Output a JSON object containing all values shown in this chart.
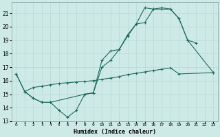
{
  "xlabel": "Humidex (Indice chaleur)",
  "xlim": [
    -0.5,
    23.5
  ],
  "ylim": [
    13,
    21.8
  ],
  "yticks": [
    13,
    14,
    15,
    16,
    17,
    18,
    19,
    20,
    21
  ],
  "xticks": [
    0,
    1,
    2,
    3,
    4,
    5,
    6,
    7,
    8,
    9,
    10,
    11,
    12,
    13,
    14,
    15,
    16,
    17,
    18,
    19,
    20,
    21,
    22,
    23
  ],
  "bg_color": "#ceeae6",
  "grid_color": "#b8d8d4",
  "line_color": "#1a6b60",
  "line1_x": [
    0,
    1,
    2,
    3,
    4,
    5,
    6,
    7,
    8,
    9,
    10,
    11,
    12,
    13,
    14,
    15,
    16,
    17,
    18,
    19,
    20,
    21
  ],
  "line1_y": [
    16.5,
    15.2,
    14.7,
    14.4,
    14.4,
    13.8,
    13.3,
    13.8,
    15.0,
    15.1,
    17.0,
    17.5,
    18.3,
    19.3,
    20.2,
    20.3,
    21.3,
    21.3,
    21.3,
    20.6,
    19.0,
    18.8
  ],
  "line2_x": [
    0,
    1,
    2,
    3,
    4,
    8,
    9,
    10,
    11,
    12,
    13,
    14,
    15,
    16,
    17,
    18,
    19,
    20,
    23
  ],
  "line2_y": [
    16.5,
    15.2,
    14.7,
    14.4,
    14.4,
    15.0,
    15.1,
    17.5,
    18.2,
    18.3,
    19.4,
    20.2,
    21.4,
    21.3,
    21.4,
    21.3,
    20.6,
    19.0,
    16.6
  ],
  "line3_x": [
    1,
    2,
    3,
    4,
    5,
    6,
    7,
    8,
    9,
    10,
    11,
    12,
    13,
    14,
    15,
    16,
    17,
    18,
    19,
    23
  ],
  "line3_y": [
    15.2,
    15.5,
    15.6,
    15.7,
    15.8,
    15.85,
    15.9,
    15.95,
    16.0,
    16.1,
    16.2,
    16.3,
    16.45,
    16.55,
    16.65,
    16.75,
    16.85,
    16.95,
    16.5,
    16.6
  ]
}
